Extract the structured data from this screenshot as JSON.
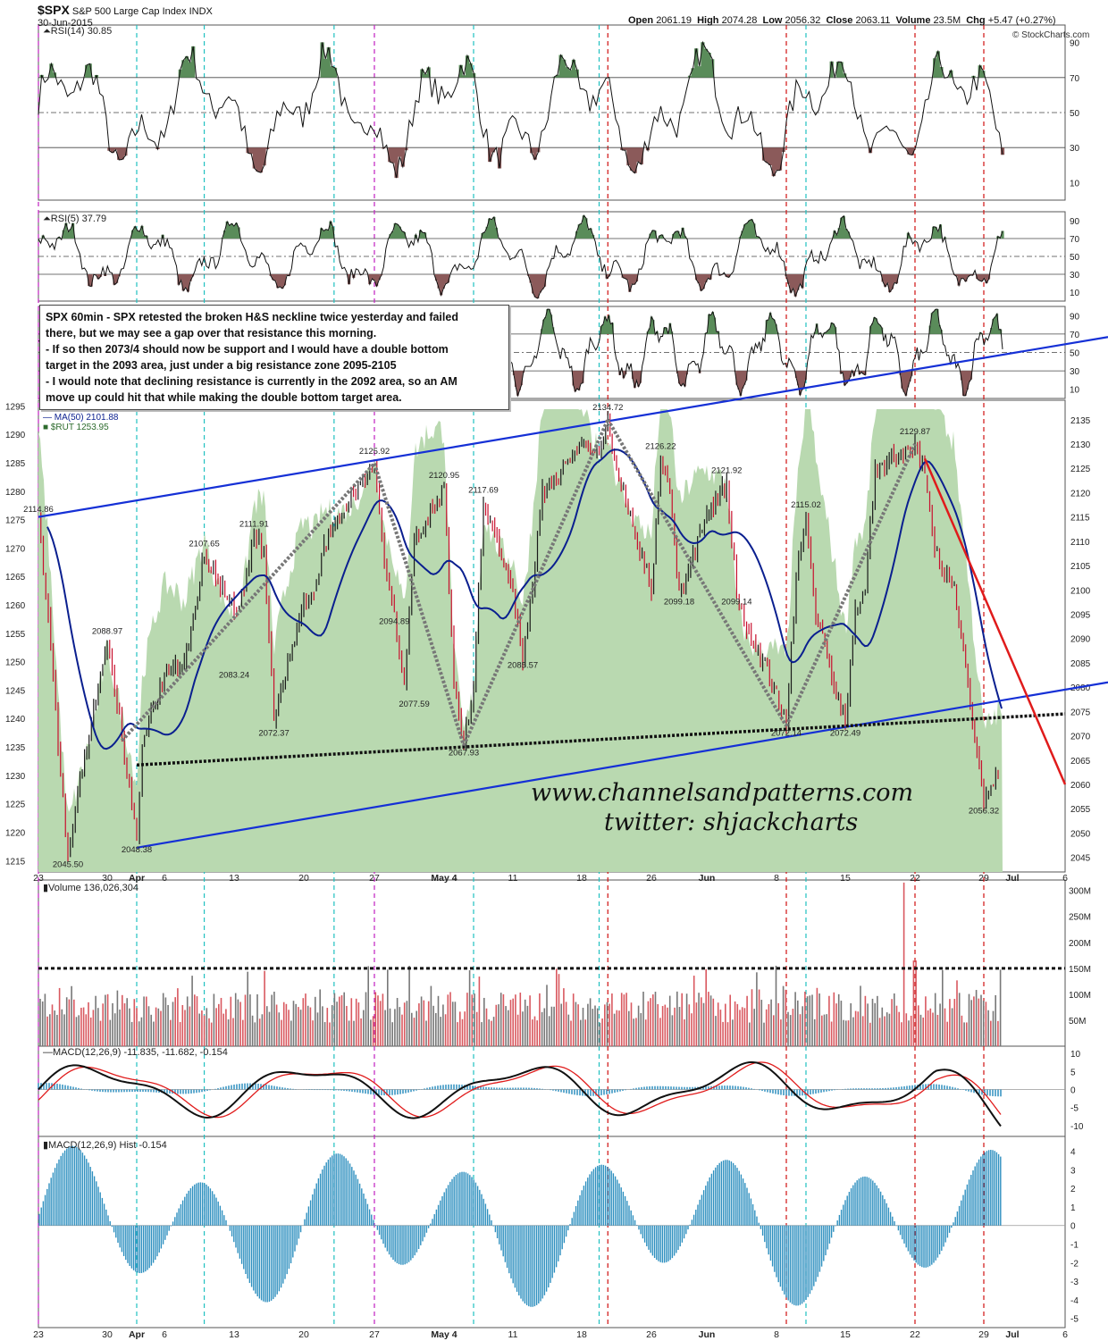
{
  "header": {
    "ticker": "$SPX",
    "name": "S&P 500 Large Cap Index",
    "exchange": "INDX",
    "date": "30-Jun-2015",
    "open_label": "Open",
    "open": "2061.19",
    "high_label": "High",
    "high": "2074.28",
    "low_label": "Low",
    "low": "2056.32",
    "close_label": "Close",
    "close": "2063.11",
    "volume_label": "Volume",
    "volume": "23.5M",
    "chg_label": "Chg",
    "chg": "+5.47 (+0.27%)",
    "credit": "© StockCharts.com"
  },
  "annotation": {
    "lines": [
      "SPX 60min - SPX retested the broken H&S neckline twice yesterday and failed",
      "there, but we may see a gap over that resistance this morning.",
      "- If so then 2073/4 should now be support and I would have a double bottom",
      "target in the 2093 area, just under a big resistance zone 2095-2105",
      "- I would note that declining resistance is currently in the 2092 area, so an AM",
      "move up could hit that while making the double bottom target area."
    ]
  },
  "watermark": {
    "site": "www.channelsandpatterns.com",
    "twitter": "twitter: shjackcharts"
  },
  "colors": {
    "up": "#1a1a1a",
    "down": "#c8102e",
    "ma": "#0a1f8f",
    "rut_fill": "#b9d9b0",
    "trendline": "#1530d6",
    "red_line": "#e01b1b",
    "green_zone": "#5a8c5a",
    "red_zone": "#8b5a5a",
    "vol_up": "#777777",
    "vol_down": "#d9585f",
    "macd_hist": "#2d8fbf",
    "vline_magenta": "#c020c0",
    "vline_cyan": "#20c0c0",
    "vline_red": "#d01010"
  },
  "chart_data": [
    {
      "type": "line",
      "panel": "rsi14",
      "label": "RSI(14)",
      "value": "30.85",
      "levels": [
        70,
        50,
        30
      ],
      "yticks": [
        "90",
        "70",
        "50",
        "30",
        "10"
      ],
      "ylim": [
        0,
        100
      ]
    },
    {
      "type": "line",
      "panel": "rsi5",
      "label": "RSI(5)",
      "value": "37.79",
      "levels": [
        70,
        50,
        30
      ],
      "yticks": [
        "90",
        "70",
        "50",
        "30",
        "10"
      ],
      "ylim": [
        0,
        100
      ]
    },
    {
      "type": "line",
      "panel": "rsi_ind3",
      "yticks": [
        "90",
        "70",
        "50",
        "30",
        "10"
      ],
      "ylim": [
        0,
        100
      ]
    },
    {
      "type": "line",
      "panel": "price",
      "title": "$SPX (60 min) 2063.11",
      "legend": [
        {
          "name": "MA(50)",
          "value": "2101.88"
        },
        {
          "name": "$RUT",
          "value": "1253.95"
        }
      ],
      "yticks_right": [
        "2135",
        "2130",
        "2125",
        "2120",
        "2115",
        "2110",
        "2105",
        "2100",
        "2095",
        "2090",
        "2085",
        "2080",
        "2075",
        "2070",
        "2065",
        "2060",
        "2055",
        "2050",
        "2045"
      ],
      "yticks_left": [
        "1295",
        "1290",
        "1285",
        "1280",
        "1275",
        "1270",
        "1265",
        "1260",
        "1255",
        "1250",
        "1245",
        "1240",
        "1235",
        "1230",
        "1225",
        "1220",
        "1215"
      ],
      "ylim_right": [
        2042,
        2139
      ],
      "ylim_left": [
        1213,
        1296
      ],
      "x_labels": [
        "23",
        "30",
        "Apr",
        "6",
        "13",
        "20",
        "27",
        "May 4",
        "11",
        "18",
        "26",
        "Jun",
        "8",
        "15",
        "22",
        "29",
        "Jul",
        "6"
      ],
      "x_dates": [
        "2015-03-23",
        "2015-03-30",
        "2015-04-01",
        "2015-04-06",
        "2015-04-13",
        "2015-04-20",
        "2015-04-27",
        "2015-05-04",
        "2015-05-11",
        "2015-05-18",
        "2015-05-26",
        "2015-06-01",
        "2015-06-08",
        "2015-06-15",
        "2015-06-22",
        "2015-06-29",
        "2015-07-01",
        "2015-07-06"
      ],
      "spx_path": [
        [
          "2015-03-23",
          2114.86
        ],
        [
          "2015-03-24",
          2095
        ],
        [
          "2015-03-25",
          2068
        ],
        [
          "2015-03-26",
          2045.5
        ],
        [
          "2015-03-27",
          2058
        ],
        [
          "2015-03-30",
          2088.97
        ],
        [
          "2015-03-31",
          2070
        ],
        [
          "2015-04-01",
          2048.38
        ],
        [
          "2015-04-02",
          2068
        ],
        [
          "2015-04-06",
          2083
        ],
        [
          "2015-04-08",
          2085
        ],
        [
          "2015-04-10",
          2107.65
        ],
        [
          "2015-04-13",
          2096
        ],
        [
          "2015-04-14",
          2100
        ],
        [
          "2015-04-15",
          2111.91
        ],
        [
          "2015-04-16",
          2108
        ],
        [
          "2015-04-17",
          2072.37
        ],
        [
          "2015-04-20",
          2098
        ],
        [
          "2015-04-21",
          2100
        ],
        [
          "2015-04-22",
          2109
        ],
        [
          "2015-04-24",
          2117
        ],
        [
          "2015-04-27",
          2125.92
        ],
        [
          "2015-04-28",
          2106
        ],
        [
          "2015-04-29",
          2094.89
        ],
        [
          "2015-04-30",
          2080
        ],
        [
          "2015-05-01",
          2110
        ],
        [
          "2015-05-04",
          2120.95
        ],
        [
          "2015-05-05",
          2080
        ],
        [
          "2015-05-06",
          2067.93
        ],
        [
          "2015-05-07",
          2080
        ],
        [
          "2015-05-08",
          2117.69
        ],
        [
          "2015-05-11",
          2100
        ],
        [
          "2015-05-12",
          2085.57
        ],
        [
          "2015-05-13",
          2100
        ],
        [
          "2015-05-14",
          2120
        ],
        [
          "2015-05-18",
          2130
        ],
        [
          "2015-05-20",
          2128
        ],
        [
          "2015-05-21",
          2134.72
        ],
        [
          "2015-05-22",
          2125
        ],
        [
          "2015-05-26",
          2100
        ],
        [
          "2015-05-27",
          2126.22
        ],
        [
          "2015-05-28",
          2120
        ],
        [
          "2015-05-29",
          2099.18
        ],
        [
          "2015-06-01",
          2115
        ],
        [
          "2015-06-03",
          2121.92
        ],
        [
          "2015-06-04",
          2099.14
        ],
        [
          "2015-06-05",
          2092
        ],
        [
          "2015-06-08",
          2079
        ],
        [
          "2015-06-09",
          2072.14
        ],
        [
          "2015-06-10",
          2103
        ],
        [
          "2015-06-11",
          2115.02
        ],
        [
          "2015-06-12",
          2095
        ],
        [
          "2015-06-15",
          2072.49
        ],
        [
          "2015-06-16",
          2096
        ],
        [
          "2015-06-17",
          2100
        ],
        [
          "2015-06-18",
          2125
        ],
        [
          "2015-06-22",
          2129.87
        ],
        [
          "2015-06-23",
          2123
        ],
        [
          "2015-06-24",
          2108
        ],
        [
          "2015-06-25",
          2103
        ],
        [
          "2015-06-26",
          2101
        ],
        [
          "2015-06-29",
          2056.32
        ],
        [
          "2015-06-30",
          2063.11
        ]
      ],
      "price_labels": [
        {
          "text": "2114.86",
          "date": "2015-03-23",
          "y": 2116
        },
        {
          "text": "2045.50",
          "date": "2015-03-26",
          "y": 2043
        },
        {
          "text": "2088.97",
          "date": "2015-03-30",
          "y": 2091
        },
        {
          "text": "2048.38",
          "date": "2015-04-01",
          "y": 2046
        },
        {
          "text": "2107.65",
          "date": "2015-04-10",
          "y": 2109
        },
        {
          "text": "2111.91",
          "date": "2015-04-15",
          "y": 2113
        },
        {
          "text": "2083.24",
          "date": "2015-04-13",
          "y": 2082
        },
        {
          "text": "2072.37",
          "date": "2015-04-17",
          "y": 2070
        },
        {
          "text": "2125.92",
          "date": "2015-04-27",
          "y": 2128
        },
        {
          "text": "2094.89",
          "date": "2015-04-29",
          "y": 2093
        },
        {
          "text": "2077.59",
          "date": "2015-05-01",
          "y": 2076
        },
        {
          "text": "2120.95",
          "date": "2015-05-04",
          "y": 2123
        },
        {
          "text": "2067.93",
          "date": "2015-05-06",
          "y": 2066
        },
        {
          "text": "2117.69",
          "date": "2015-05-08",
          "y": 2120
        },
        {
          "text": "2085.57",
          "date": "2015-05-12",
          "y": 2084
        },
        {
          "text": "2134.72",
          "date": "2015-05-21",
          "y": 2137
        },
        {
          "text": "2126.22",
          "date": "2015-05-27",
          "y": 2129
        },
        {
          "text": "2099.18",
          "date": "2015-05-29",
          "y": 2097
        },
        {
          "text": "2121.92",
          "date": "2015-06-03",
          "y": 2124
        },
        {
          "text": "2099.14",
          "date": "2015-06-04",
          "y": 2097
        },
        {
          "text": "2115.02",
          "date": "2015-06-11",
          "y": 2117
        },
        {
          "text": "2072.14",
          "date": "2015-06-09",
          "y": 2070
        },
        {
          "text": "2072.49",
          "date": "2015-06-15",
          "y": 2070
        },
        {
          "text": "2129.87",
          "date": "2015-06-22",
          "y": 2132
        },
        {
          "text": "2056.32",
          "date": "2015-06-29",
          "y": 2054
        }
      ]
    },
    {
      "type": "bar",
      "panel": "volume",
      "label": "Volume",
      "value": "136,026,304",
      "yticks": [
        "300M",
        "250M",
        "200M",
        "150M",
        "100M",
        "50M"
      ],
      "ylim": [
        0,
        320000000
      ]
    },
    {
      "type": "line",
      "panel": "macd",
      "label": "MACD(12,26,9)",
      "macd": "-11.835",
      "signal": "-11.682",
      "hist": "-0.154",
      "yticks": [
        "10",
        "5",
        "0",
        "-5",
        "-10"
      ],
      "ylim": [
        -13,
        12
      ]
    },
    {
      "type": "bar",
      "panel": "macd_hist",
      "label": "MACD(12,26,9) Hist",
      "value": "-0.154",
      "yticks": [
        "4",
        "3",
        "2",
        "1",
        "0",
        "-1",
        "-2",
        "-3",
        "-4",
        "-5"
      ],
      "ylim": [
        -5.5,
        4.8
      ]
    }
  ]
}
